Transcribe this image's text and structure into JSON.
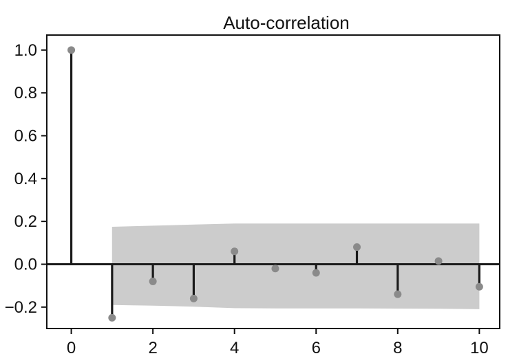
{
  "chart_data": {
    "type": "stem",
    "title": "Auto-correlation",
    "xlabel": "",
    "ylabel": "",
    "xlim": [
      -0.6,
      10.5
    ],
    "ylim": [
      -0.3,
      1.07
    ],
    "x_ticks": [
      0,
      2,
      4,
      6,
      8,
      10
    ],
    "x_tick_labels": [
      "0",
      "2",
      "4",
      "6",
      "8",
      "10"
    ],
    "y_ticks": [
      1.0,
      0.8,
      0.6,
      0.4,
      0.2,
      0.0,
      -0.2
    ],
    "y_tick_labels": [
      "1.0",
      "0.8",
      "0.6",
      "0.4",
      "0.2",
      "0.0",
      "−0.2"
    ],
    "grid": false,
    "lags": [
      0,
      1,
      2,
      3,
      4,
      5,
      6,
      7,
      8,
      9,
      10
    ],
    "values": [
      1.0,
      -0.25,
      -0.08,
      -0.16,
      0.06,
      -0.02,
      -0.04,
      0.08,
      -0.14,
      0.015,
      -0.105
    ],
    "confidence_band": {
      "x": [
        1,
        2,
        3,
        4,
        5,
        6,
        7,
        8,
        9,
        10
      ],
      "upper": [
        0.175,
        0.18,
        0.185,
        0.19,
        0.19,
        0.19,
        0.19,
        0.19,
        0.19,
        0.19
      ],
      "lower": [
        -0.19,
        -0.193,
        -0.198,
        -0.205,
        -0.206,
        -0.206,
        -0.206,
        -0.207,
        -0.208,
        -0.21
      ]
    },
    "colors": {
      "stem": "#1a1a1a",
      "marker": "#8a8a8a",
      "band": "#cccccc",
      "zero_line": "#1a1a1a"
    }
  }
}
